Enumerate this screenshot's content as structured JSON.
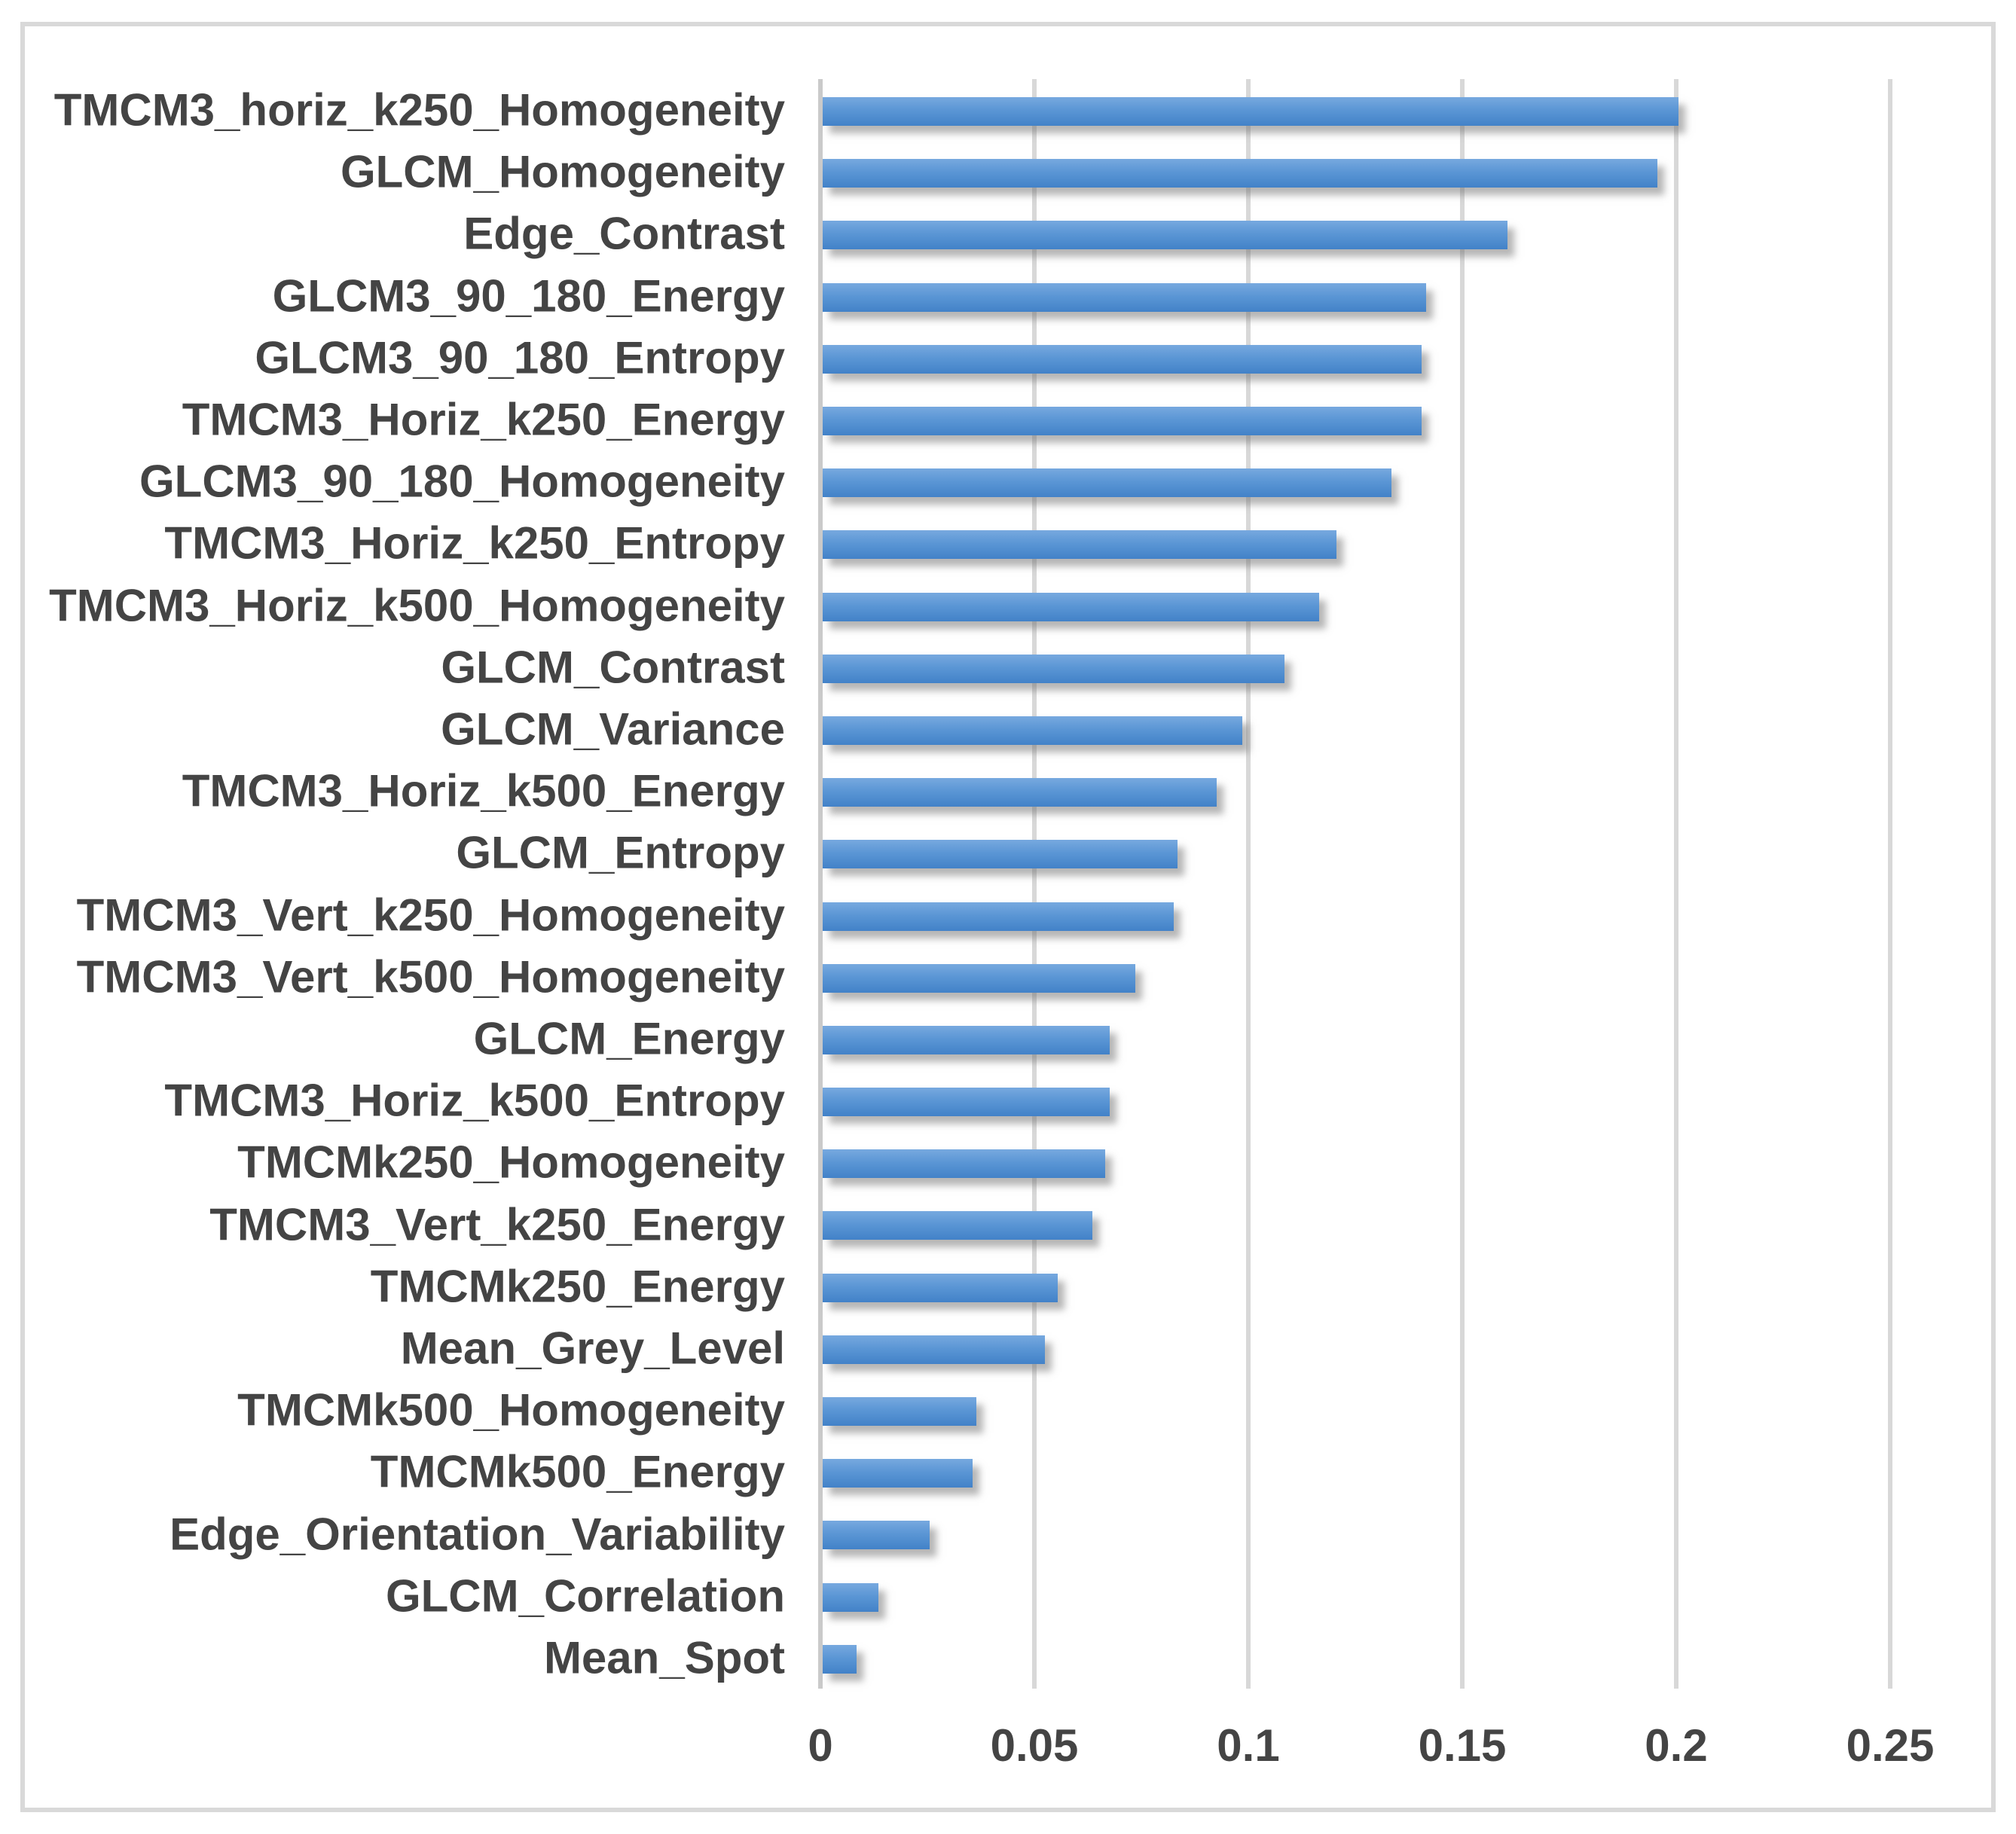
{
  "chart_data": {
    "type": "bar",
    "orientation": "horizontal",
    "title": "",
    "xlabel": "",
    "ylabel": "",
    "categories": [
      "TMCM3_horiz_k250_Homogeneity",
      "GLCM_Homogeneity",
      "Edge_Contrast",
      "GLCM3_90_180_Energy",
      "GLCM3_90_180_Entropy",
      "TMCM3_Horiz_k250_Energy",
      "GLCM3_90_180_Homogeneity",
      "TMCM3_Horiz_k250_Entropy",
      "TMCM3_Horiz_k500_Homogeneity",
      "GLCM_Contrast",
      "GLCM_Variance",
      "TMCM3_Horiz_k500_Energy",
      "GLCM_Entropy",
      "TMCM3_Vert_k250_Homogeneity",
      "TMCM3_Vert_k500_Homogeneity",
      "GLCM_Energy",
      "TMCM3_Horiz_k500_Entropy",
      "TMCMk250_Homogeneity",
      "TMCM3_Vert_k250_Energy",
      "TMCMk250_Energy",
      "Mean_Grey_Level",
      "TMCMk500_Homogeneity",
      "TMCMk500_Energy",
      "Edge_Orientation_Variability",
      "GLCM_Correlation",
      "Mean_Spot"
    ],
    "values": [
      0.2,
      0.195,
      0.16,
      0.141,
      0.14,
      0.14,
      0.133,
      0.12,
      0.116,
      0.108,
      0.098,
      0.092,
      0.083,
      0.082,
      0.073,
      0.067,
      0.067,
      0.066,
      0.063,
      0.055,
      0.052,
      0.036,
      0.035,
      0.025,
      0.013,
      0.008
    ],
    "xlim": [
      0,
      0.25
    ],
    "x_ticks": [
      0,
      0.05,
      0.1,
      0.15,
      0.2,
      0.25
    ],
    "x_tick_labels": [
      "0",
      "0.05",
      "0.1",
      "0.15",
      "0.2",
      "0.25"
    ],
    "grid": "vertical-gridlines-on",
    "legend": "none",
    "colors": {
      "bar_top": "#77A9DF",
      "bar_bottom": "#4282C8",
      "gridline": "#D8D8D8",
      "axis_line": "#CACACA",
      "text": "#444444",
      "frame_border": "#D9D9D9",
      "background": "#FFFFFF"
    }
  }
}
